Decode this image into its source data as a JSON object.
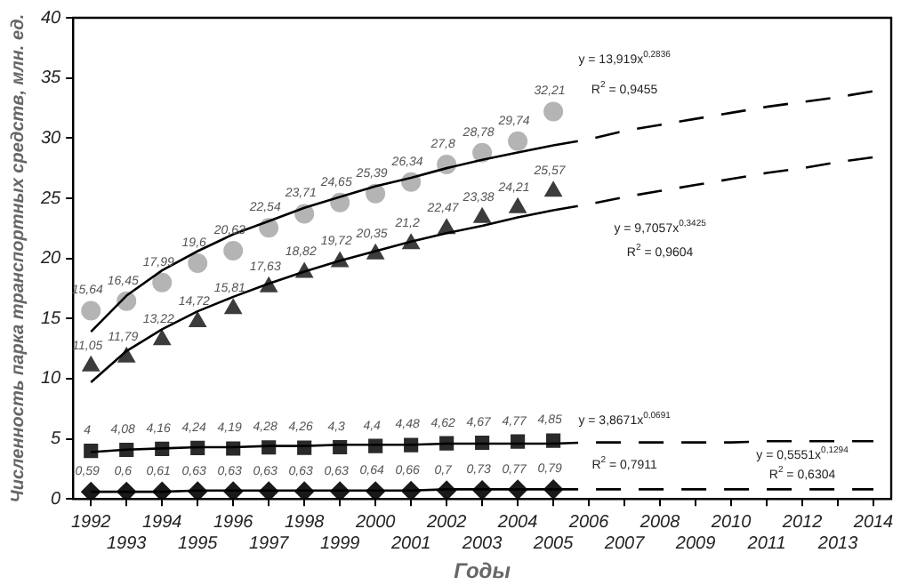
{
  "chart_data": {
    "type": "line",
    "ylabel": "Численность парка транспортных средств, млн. ед.",
    "xlabel": "Годы",
    "categories": [
      "1992",
      "1993",
      "1994",
      "1995",
      "1996",
      "1997",
      "1998",
      "1999",
      "2000",
      "2001",
      "2002",
      "2003",
      "2004",
      "2005",
      "2006",
      "2007",
      "2008",
      "2009",
      "2010",
      "2011",
      "2012",
      "2013",
      "2014"
    ],
    "ylim": [
      0,
      40
    ],
    "yticks": [
      0,
      5,
      10,
      15,
      20,
      25,
      30,
      35,
      40
    ],
    "grid": false,
    "legend": false,
    "series": [
      {
        "type": "scatter",
        "marker": "circle",
        "color": "#b4b4b4",
        "values": [
          15.64,
          16.45,
          17.99,
          19.6,
          20.63,
          22.54,
          23.71,
          24.65,
          25.39,
          26.34,
          27.8,
          28.78,
          29.74,
          32.21,
          null,
          null,
          null,
          null,
          null,
          null,
          null,
          null,
          null
        ],
        "value_labels": [
          "15,64",
          "16,45",
          "17,99",
          "19,6",
          "20,63",
          "22,54",
          "23,71",
          "24,65",
          "25,39",
          "26,34",
          "27,8",
          "28,78",
          "29,74",
          "32,21",
          null,
          null,
          null,
          null,
          null,
          null,
          null,
          null,
          null
        ]
      },
      {
        "type": "scatter",
        "marker": "triangle",
        "color": "#3c3c3c",
        "values": [
          11.05,
          11.79,
          13.22,
          14.72,
          15.81,
          17.63,
          18.82,
          19.72,
          20.35,
          21.2,
          22.47,
          23.38,
          24.21,
          25.57,
          null,
          null,
          null,
          null,
          null,
          null,
          null,
          null,
          null
        ],
        "value_labels": [
          "11,05",
          "11,79",
          "13,22",
          "14,72",
          "15,81",
          "17,63",
          "18,82",
          "19,72",
          "20,35",
          "21,2",
          "22,47",
          "23,38",
          "24,21",
          "25,57",
          null,
          null,
          null,
          null,
          null,
          null,
          null,
          null,
          null
        ]
      },
      {
        "type": "scatter",
        "marker": "square",
        "color": "#2a2a2a",
        "values": [
          4,
          4.08,
          4.16,
          4.24,
          4.19,
          4.28,
          4.26,
          4.3,
          4.4,
          4.48,
          4.62,
          4.67,
          4.77,
          4.85,
          null,
          null,
          null,
          null,
          null,
          null,
          null,
          null,
          null
        ],
        "value_labels": [
          "4",
          "4,08",
          "4,16",
          "4,24",
          "4,19",
          "4,28",
          "4,26",
          "4,3",
          "4,4",
          "4,48",
          "4,62",
          "4,67",
          "4,77",
          "4,85",
          null,
          null,
          null,
          null,
          null,
          null,
          null,
          null,
          null
        ]
      },
      {
        "type": "scatter",
        "marker": "diamond",
        "color": "#1a1a1a",
        "values": [
          0.59,
          0.6,
          0.61,
          0.63,
          0.63,
          0.63,
          0.63,
          0.63,
          0.64,
          0.66,
          0.7,
          0.73,
          0.77,
          0.79,
          null,
          null,
          null,
          null,
          null,
          null,
          null,
          null,
          null
        ],
        "value_labels": [
          "0,59",
          "0,6",
          "0,61",
          "0,63",
          "0,63",
          "0,63",
          "0,63",
          "0,63",
          "0,64",
          "0,66",
          "0,7",
          "0,73",
          "0,77",
          "0,79",
          null,
          null,
          null,
          null,
          null,
          null,
          null,
          null,
          null
        ]
      },
      {
        "type": "line",
        "marker": "none",
        "line_style": "solid",
        "color": "#000000",
        "values": [
          13.9,
          16.9,
          19.0,
          20.6,
          22.0,
          23.1,
          24.2,
          25.1,
          26.0,
          26.7,
          27.5,
          28.2,
          28.8,
          29.4,
          null,
          null,
          null,
          null,
          null,
          null,
          null,
          null,
          null
        ]
      },
      {
        "type": "line",
        "marker": "none",
        "line_style": "dashed",
        "color": "#000000",
        "values": [
          null,
          null,
          null,
          null,
          null,
          null,
          null,
          null,
          null,
          null,
          null,
          null,
          null,
          29.4,
          29.9,
          30.6,
          31.1,
          31.6,
          32.1,
          32.6,
          33.0,
          33.4,
          33.9
        ]
      },
      {
        "type": "line",
        "marker": "none",
        "line_style": "solid",
        "color": "#000000",
        "values": [
          9.7,
          12.3,
          14.1,
          15.6,
          16.8,
          17.9,
          18.9,
          19.8,
          20.6,
          21.4,
          22.1,
          22.7,
          23.4,
          24.0,
          null,
          null,
          null,
          null,
          null,
          null,
          null,
          null,
          null
        ]
      },
      {
        "type": "line",
        "marker": "none",
        "line_style": "dashed",
        "color": "#000000",
        "values": [
          null,
          null,
          null,
          null,
          null,
          null,
          null,
          null,
          null,
          null,
          null,
          null,
          null,
          24.0,
          24.5,
          25.1,
          25.6,
          26.1,
          26.6,
          27.1,
          27.5,
          28.0,
          28.4
        ]
      },
      {
        "type": "line",
        "marker": "none",
        "line_style": "solid",
        "color": "#000000",
        "values": [
          3.9,
          4.1,
          4.2,
          4.3,
          4.3,
          4.4,
          4.4,
          4.5,
          4.5,
          4.5,
          4.6,
          4.6,
          4.6,
          4.6,
          null,
          null,
          null,
          null,
          null,
          null,
          null,
          null,
          null
        ]
      },
      {
        "type": "line",
        "marker": "none",
        "line_style": "dashed",
        "color": "#000000",
        "values": [
          null,
          null,
          null,
          null,
          null,
          null,
          null,
          null,
          null,
          null,
          null,
          null,
          null,
          4.6,
          4.7,
          4.7,
          4.7,
          4.7,
          4.7,
          4.8,
          4.8,
          4.8,
          4.8
        ]
      },
      {
        "type": "line",
        "marker": "none",
        "line_style": "solid",
        "color": "#000000",
        "values": [
          0.6,
          0.6,
          0.6,
          0.7,
          0.7,
          0.7,
          0.7,
          0.7,
          0.7,
          0.7,
          0.8,
          0.8,
          0.8,
          0.8,
          null,
          null,
          null,
          null,
          null,
          null,
          null,
          null,
          null
        ]
      },
      {
        "type": "line",
        "marker": "none",
        "line_style": "dashed",
        "color": "#000000",
        "values": [
          null,
          null,
          null,
          null,
          null,
          null,
          null,
          null,
          null,
          null,
          null,
          null,
          null,
          0.8,
          0.8,
          0.8,
          0.8,
          0.8,
          0.8,
          0.8,
          0.8,
          0.8,
          0.8
        ]
      }
    ],
    "annotations": [
      "y = 13,919x$^{0,2836}$",
      "R$^{2}$ = 0,9455",
      "y = 9,7057x$^{0,3425}$",
      "R$^{2}$ = 0,9604",
      "y = 3,8671x$^{0,0691}$",
      "R$^{2}$ = 0,7911",
      "y = 0,5551x$^{0,1294}$",
      "R$^{2}$ = 0,6304"
    ]
  }
}
